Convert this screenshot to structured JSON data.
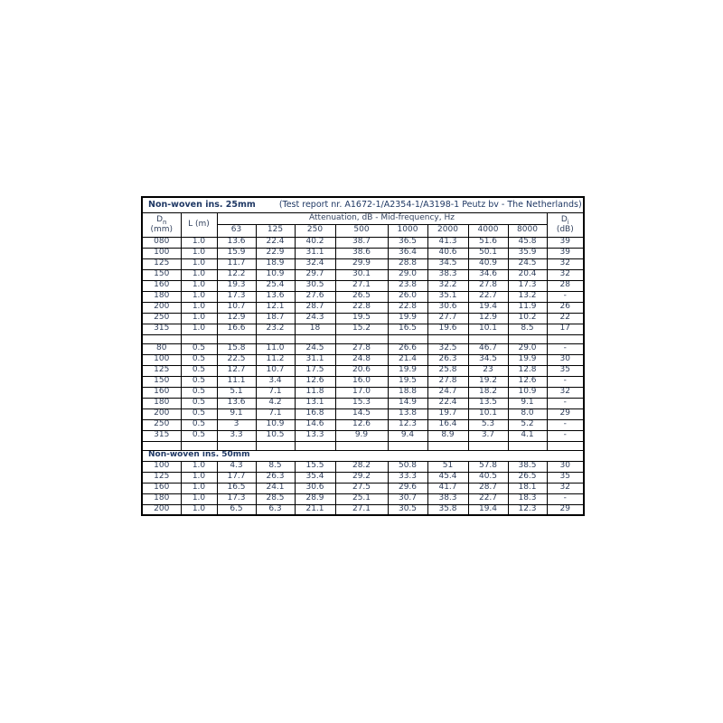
{
  "window": {
    "background": "#ffffff"
  },
  "colors": {
    "navy_title": "#1f3864",
    "data_text": "#33425e",
    "header_text": "#000000",
    "border": "#000000"
  },
  "table": {
    "title": "Non-woven ins. 25mm",
    "test_report": "(Test report nr. A1672-1/A2354-1/A3198-1 Peutz bv - The Netherlands)",
    "header": {
      "dn": {
        "symbol": "D",
        "sub": "n",
        "unit": "(mm)"
      },
      "l_label": "L (m)",
      "attenuation_label": "Attenuation, dB - Mid-frequency, Hz",
      "frequencies": [
        "63",
        "125",
        "250",
        "500",
        "1000",
        "2000",
        "4000",
        "8000"
      ],
      "di": {
        "symbol": "D",
        "sub": "i",
        "unit": "(dB)"
      }
    },
    "sections": [
      {
        "separator": false,
        "header": null,
        "rows": [
          {
            "dn": "080",
            "l": "1.0",
            "values": [
              "13.6",
              "22.4",
              "40.2",
              "38.7",
              "36.5",
              "41.3",
              "51.6",
              "45.8"
            ],
            "di": "39"
          },
          {
            "dn": "100",
            "l": "1.0",
            "values": [
              "15.9",
              "22.9",
              "31.1",
              "38.6",
              "36.4",
              "40.6",
              "50.1",
              "35.9"
            ],
            "di": "39"
          },
          {
            "dn": "125",
            "l": "1.0",
            "values": [
              "11.7",
              "18.9",
              "32.4",
              "29.9",
              "28.8",
              "34.5",
              "40.9",
              "24.5"
            ],
            "di": "32"
          },
          {
            "dn": "150",
            "l": "1.0",
            "values": [
              "12.2",
              "10.9",
              "29.7",
              "30.1",
              "29.0",
              "38.3",
              "34.6",
              "20.4"
            ],
            "di": "32"
          },
          {
            "dn": "160",
            "l": "1.0",
            "values": [
              "19.3",
              "25.4",
              "30.5",
              "27.1",
              "23.8",
              "32.2",
              "27.8",
              "17.3"
            ],
            "di": "28"
          },
          {
            "dn": "180",
            "l": "1.0",
            "values": [
              "17.3",
              "13.6",
              "27.6",
              "26.5",
              "26.0",
              "35.1",
              "22.7",
              "13.2"
            ],
            "di": "-"
          },
          {
            "dn": "200",
            "l": "1.0",
            "values": [
              "10.7",
              "12.1",
              "28.7",
              "22.8",
              "22.8",
              "30.6",
              "19.4",
              "11.9"
            ],
            "di": "26"
          },
          {
            "dn": "250",
            "l": "1.0",
            "values": [
              "12.9",
              "18.7",
              "24.3",
              "19.5",
              "19.9",
              "27.7",
              "12.9",
              "10.2"
            ],
            "di": "22"
          },
          {
            "dn": "315",
            "l": "1.0",
            "values": [
              "16.6",
              "23.2",
              "18",
              "15.2",
              "16.5",
              "19.6",
              "10.1",
              "8.5"
            ],
            "di": "17"
          }
        ]
      },
      {
        "separator": true,
        "header": null,
        "rows": [
          {
            "dn": "80",
            "l": "0.5",
            "values": [
              "15.8",
              "11.0",
              "24.5",
              "27.8",
              "26.6",
              "32.5",
              "46.7",
              "29.0"
            ],
            "di": "-"
          },
          {
            "dn": "100",
            "l": "0.5",
            "values": [
              "22.5",
              "11.2",
              "31.1",
              "24.8",
              "21.4",
              "26.3",
              "34.5",
              "19.9"
            ],
            "di": "30"
          },
          {
            "dn": "125",
            "l": "0.5",
            "values": [
              "12.7",
              "10.7",
              "17.5",
              "20.6",
              "19.9",
              "25.8",
              "23",
              "12.8"
            ],
            "di": "35"
          },
          {
            "dn": "150",
            "l": "0.5",
            "values": [
              "11.1",
              "3.4",
              "12.6",
              "16.0",
              "19.5",
              "27.8",
              "19.2",
              "12.6"
            ],
            "di": "-"
          },
          {
            "dn": "160",
            "l": "0.5",
            "values": [
              "5.1",
              "7.1",
              "11.8",
              "17.0",
              "18.8",
              "24.7",
              "18.2",
              "10.9"
            ],
            "di": "32"
          },
          {
            "dn": "180",
            "l": "0.5",
            "values": [
              "13.6",
              "4.2",
              "13.1",
              "15.3",
              "14.9",
              "22.4",
              "13.5",
              "9.1"
            ],
            "di": "-"
          },
          {
            "dn": "200",
            "l": "0.5",
            "values": [
              "9.1",
              "7.1",
              "16.8",
              "14.5",
              "13.8",
              "19.7",
              "10.1",
              "8.0"
            ],
            "di": "29"
          },
          {
            "dn": "250",
            "l": "0.5",
            "values": [
              "3",
              "10.9",
              "14.6",
              "12.6",
              "12.3",
              "16.4",
              "5.3",
              "5.2"
            ],
            "di": "-"
          },
          {
            "dn": "315",
            "l": "0.5",
            "values": [
              "3.3",
              "10.5",
              "13.3",
              "9.9",
              "9.4",
              "8.9",
              "3.7",
              "4.1"
            ],
            "di": "-"
          }
        ]
      },
      {
        "separator": true,
        "header": "Non-woven ins. 50mm",
        "rows": [
          {
            "dn": "100",
            "l": "1.0",
            "values": [
              "4.3",
              "8.5",
              "15.5",
              "28.2",
              "50.8",
              "51",
              "57.8",
              "38.5"
            ],
            "di": "30"
          },
          {
            "dn": "125",
            "l": "1.0",
            "values": [
              "17.7",
              "26.3",
              "35.4",
              "29.2",
              "33.3",
              "45.4",
              "40.5",
              "26.5"
            ],
            "di": "35"
          },
          {
            "dn": "160",
            "l": "1.0",
            "values": [
              "16.5",
              "24.1",
              "30.6",
              "27.5",
              "29.6",
              "41.7",
              "28.7",
              "18.1"
            ],
            "di": "32"
          },
          {
            "dn": "180",
            "l": "1.0",
            "values": [
              "17.3",
              "28.5",
              "28.9",
              "25.1",
              "30.7",
              "38.3",
              "22.7",
              "18.3"
            ],
            "di": "-"
          },
          {
            "dn": "200",
            "l": "1.0",
            "values": [
              "6.5",
              "6.3",
              "21.1",
              "27.1",
              "30.5",
              "35.8",
              "19.4",
              "12.3"
            ],
            "di": "29"
          }
        ]
      }
    ]
  }
}
